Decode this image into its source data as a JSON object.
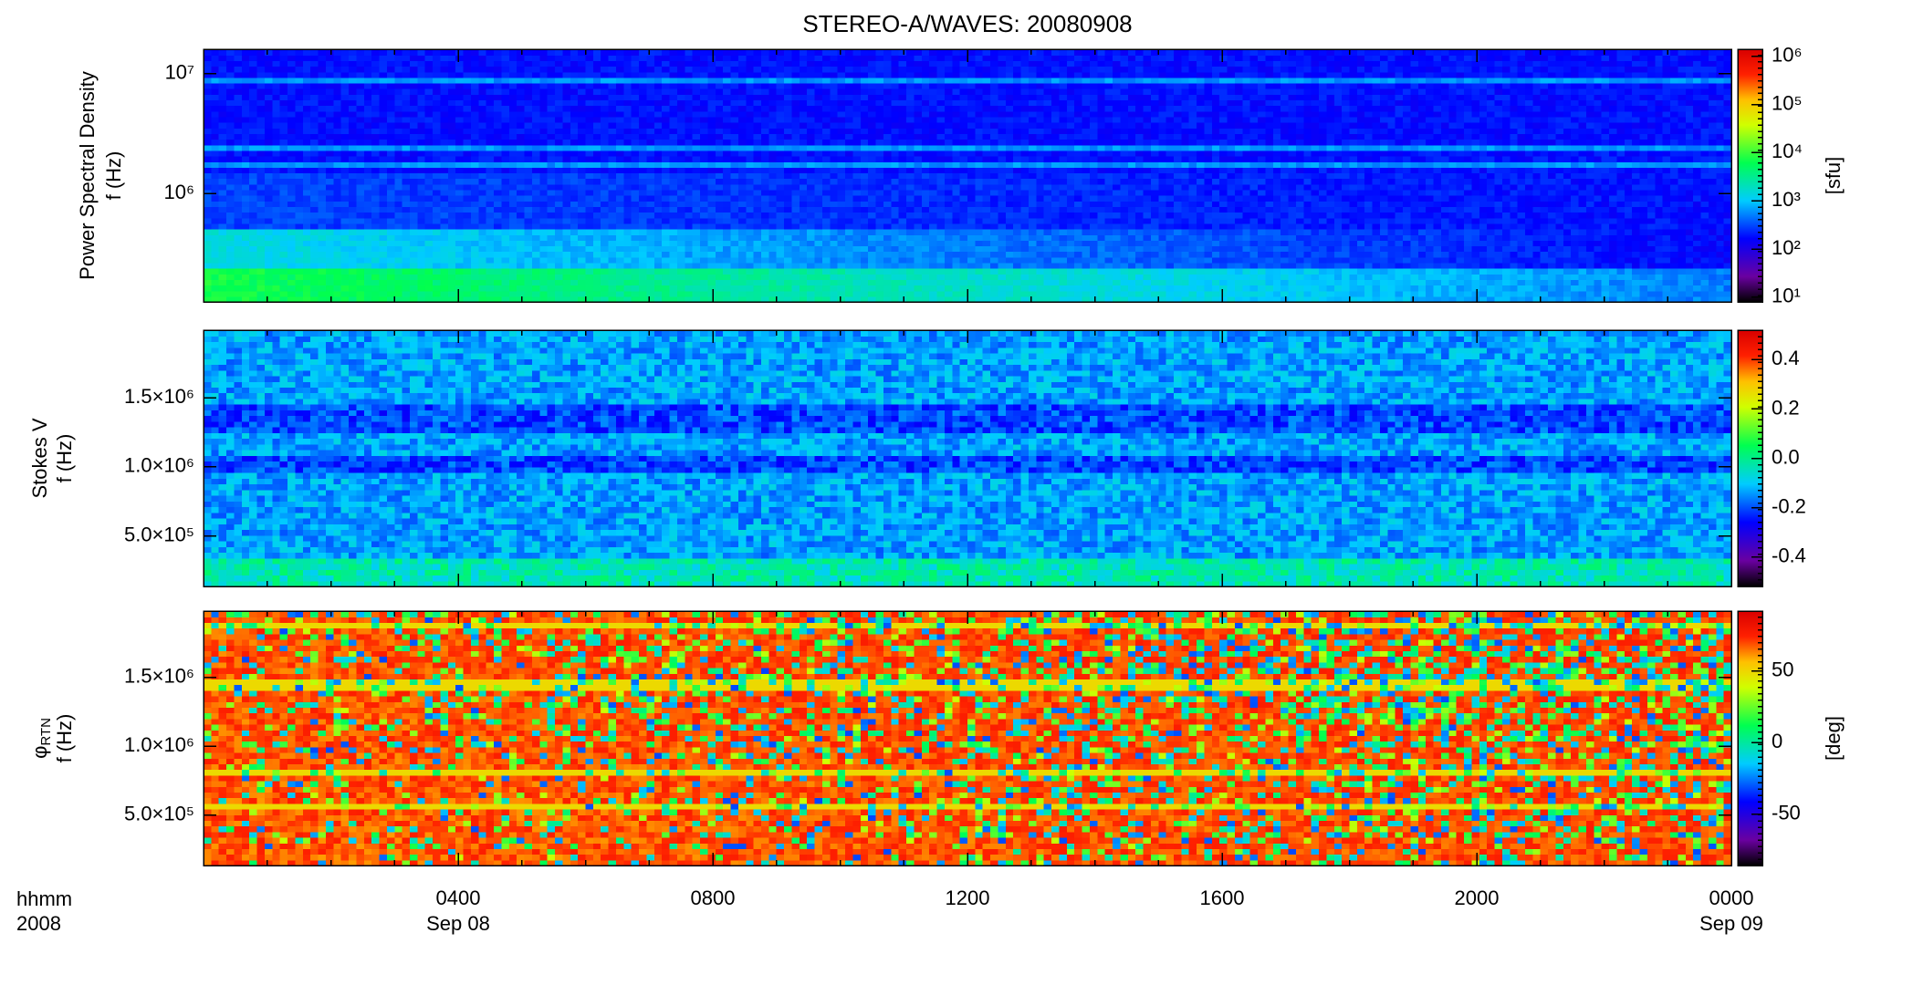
{
  "title": "STEREO-A/WAVES: 20080908",
  "x_axis": {
    "format_label": "hhmm",
    "year_label": "2008",
    "xlim": [
      0,
      24
    ],
    "xticks": [
      {
        "value": 4,
        "label": "0400"
      },
      {
        "value": 8,
        "label": "0800"
      },
      {
        "value": 12,
        "label": "1200"
      },
      {
        "value": 16,
        "label": "1600"
      },
      {
        "value": 20,
        "label": "2000"
      },
      {
        "value": 24,
        "label": "0000"
      }
    ],
    "date_labels": [
      {
        "value": 4,
        "label": "Sep 08"
      },
      {
        "value": 24,
        "label": "Sep 09"
      }
    ]
  },
  "chart_data": [
    {
      "type": "spectrogram",
      "ylabel": "Power Spectral Density",
      "ylabel2": "f (Hz)",
      "ylog": true,
      "ylim": [
        125000,
        16000000
      ],
      "yticks": [
        {
          "value": 1000000,
          "label": "10⁶"
        },
        {
          "value": 10000000,
          "label": "10⁷"
        }
      ],
      "colorbar": {
        "log": true,
        "zlim": [
          8,
          1400000
        ],
        "label": "[sfu]",
        "zticks": [
          {
            "value": 10,
            "label": "10¹"
          },
          {
            "value": 100,
            "label": "10²"
          },
          {
            "value": 1000,
            "label": "10³"
          },
          {
            "value": 10000,
            "label": "10⁴"
          },
          {
            "value": 100000,
            "label": "10⁵"
          },
          {
            "value": 1000000,
            "label": "10⁶"
          }
        ]
      }
    },
    {
      "type": "spectrogram",
      "ylabel": "Stokes V",
      "ylabel2": "f (Hz)",
      "ylog": false,
      "ylim": [
        134000,
        1990000
      ],
      "yticks": [
        {
          "value": 500000,
          "label": "5.0×10⁵"
        },
        {
          "value": 1000000,
          "label": "1.0×10⁶"
        },
        {
          "value": 1500000,
          "label": "1.5×10⁶"
        }
      ],
      "colorbar": {
        "log": false,
        "zlim": [
          -0.52,
          0.52
        ],
        "zticks": [
          -0.4,
          -0.2,
          {
            "value": 0,
            "label": "0.0"
          },
          0.2,
          0.4
        ]
      }
    },
    {
      "type": "spectrogram",
      "ylabel": "φ",
      "ylabel_sub": "RTN",
      "ylabel2": "f (Hz)",
      "ylog": false,
      "ylim": [
        134000,
        1980000
      ],
      "yticks": [
        {
          "value": 500000,
          "label": "5.0×10⁵"
        },
        {
          "value": 1000000,
          "label": "1.0×10⁶"
        },
        {
          "value": 1500000,
          "label": "1.5×10⁶"
        }
      ],
      "colorbar": {
        "log": false,
        "zlim": [
          -86,
          92
        ],
        "label": "[deg]",
        "zticks": [
          -50,
          0,
          50
        ]
      }
    }
  ]
}
